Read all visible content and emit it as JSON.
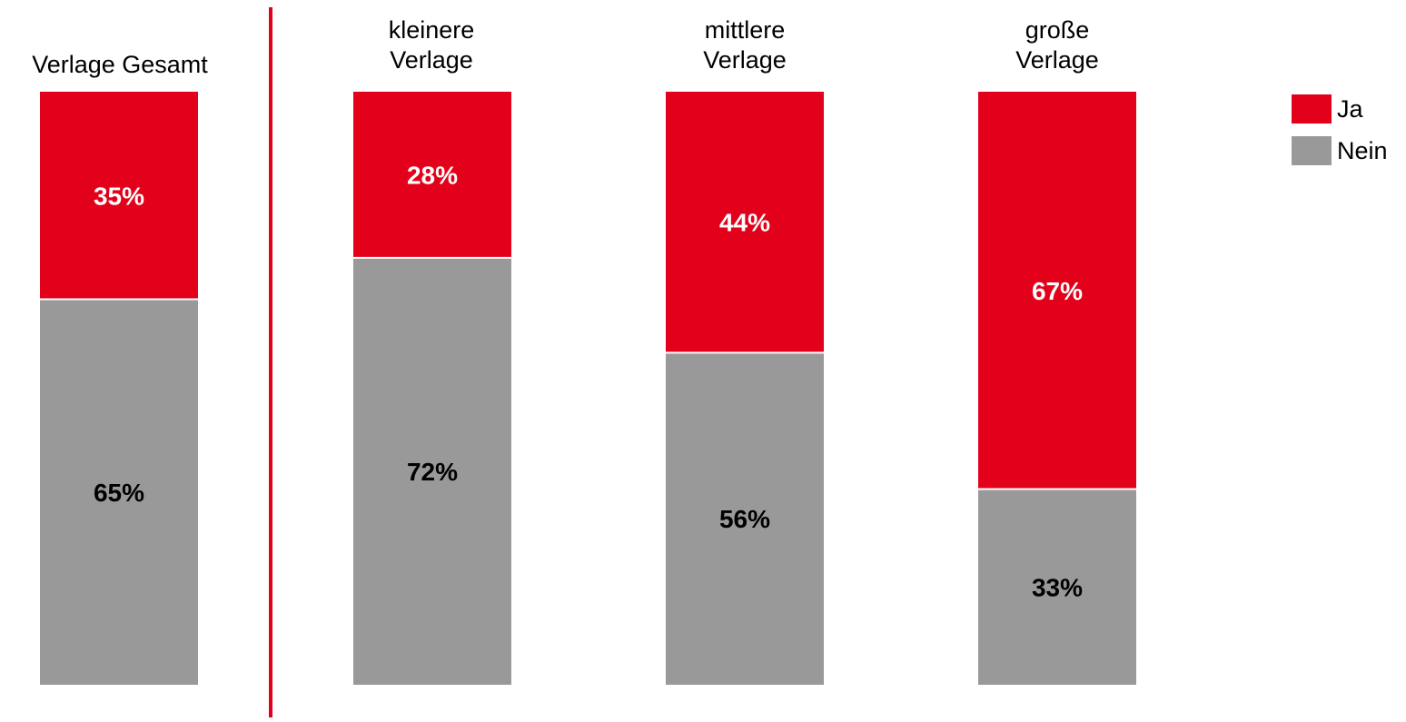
{
  "chart_data": {
    "type": "bar",
    "stacked": true,
    "percent_stacked": true,
    "categories": [
      [
        "Verlage Gesamt"
      ],
      [
        "kleinere",
        "Verlage"
      ],
      [
        "mittlere",
        "Verlage"
      ],
      [
        "große",
        "Verlage"
      ]
    ],
    "series": [
      {
        "name": "Ja",
        "color": "#e2001a",
        "label_color": "#ffffff",
        "values": [
          35,
          28,
          44,
          67
        ],
        "labels": [
          "35%",
          "28%",
          "44%",
          "67%"
        ]
      },
      {
        "name": "Nein",
        "color": "#999999",
        "label_color": "#000000",
        "values": [
          65,
          72,
          56,
          33
        ],
        "labels": [
          "65%",
          "72%",
          "56%",
          "33%"
        ]
      }
    ],
    "divider_color": "#e2001a",
    "legend_position": "top-right",
    "ylim": [
      0,
      100
    ],
    "grid": false
  }
}
